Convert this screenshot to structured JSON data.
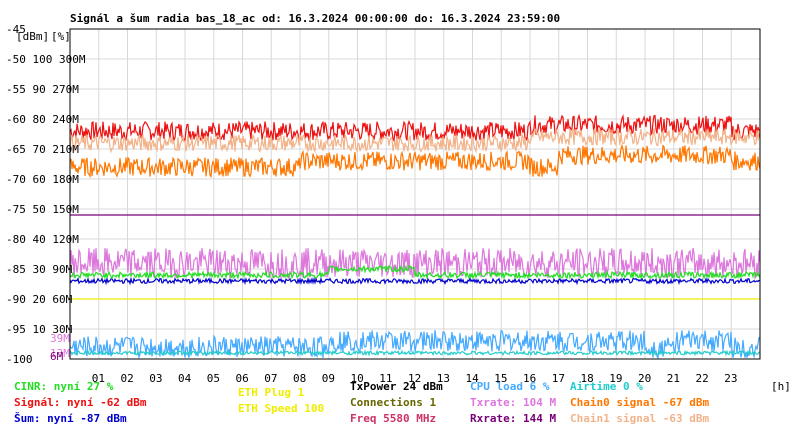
{
  "title": "Signál a šum radia bas_18_ac od: 16.3.2024 00:00:00 do: 16.3.2024 23:59:00",
  "unit_labels": {
    "dbm": "[dBm]",
    "pct": "[%]",
    "hour": "[h]"
  },
  "colors": {
    "background": "#ffffff",
    "frame": "#000000",
    "grid": "#d8d8d8",
    "signal": "#ee1111",
    "chain0": "#ff7700",
    "chain1": "#f3b38a",
    "noise": "#0000cc",
    "rxrate": "#770077",
    "txrate": "#dd77dd",
    "cinr": "#22dd22",
    "eth_speed": "#eeee00",
    "cpu": "#44aaff",
    "airtime": "#22cccc",
    "connections": "#666600"
  },
  "chart_data": {
    "type": "line",
    "title": "Signál a šum radia bas_18_ac od: 16.3.2024 00:00:00 do: 16.3.2024 23:59:00",
    "x_unit": "[h]",
    "xlim": [
      0,
      24
    ],
    "x_ticks": [
      "01",
      "02",
      "03",
      "04",
      "05",
      "06",
      "07",
      "08",
      "09",
      "10",
      "11",
      "12",
      "13",
      "14",
      "15",
      "16",
      "17",
      "18",
      "19",
      "20",
      "21",
      "22",
      "23"
    ],
    "ylim": [
      -100,
      -45
    ],
    "y_ticks": [
      {
        "dbm": "-45",
        "pct": "",
        "rate": ""
      },
      {
        "dbm": "-50",
        "pct": "100",
        "rate": "300M"
      },
      {
        "dbm": "-55",
        "pct": "90",
        "rate": "270M"
      },
      {
        "dbm": "-60",
        "pct": "80",
        "rate": "240M"
      },
      {
        "dbm": "-65",
        "pct": "70",
        "rate": "210M"
      },
      {
        "dbm": "-70",
        "pct": "60",
        "rate": "180M"
      },
      {
        "dbm": "-75",
        "pct": "50",
        "rate": "150M"
      },
      {
        "dbm": "-80",
        "pct": "40",
        "rate": "120M"
      },
      {
        "dbm": "-85",
        "pct": "30",
        "rate": "90M"
      },
      {
        "dbm": "-90",
        "pct": "20",
        "rate": "60M"
      },
      {
        "dbm": "-95",
        "pct": "10",
        "rate": "30M"
      },
      {
        "dbm": "-100",
        "pct": "",
        "rate": ""
      }
    ],
    "markers": [
      {
        "text": "39M",
        "y": -96.5,
        "color": "#dd77dd"
      },
      {
        "text": "13M",
        "y": -99,
        "color": "#dd77dd"
      },
      {
        "text": "6M",
        "y": -99.5,
        "color": "#770077"
      }
    ],
    "series": [
      {
        "name": "Signál",
        "color": "#ee1111",
        "values": [
          -62,
          -62,
          -62,
          -62,
          -62,
          -62,
          -62,
          -62,
          -62,
          -62,
          -62,
          -62,
          -62,
          -62,
          -62,
          -62,
          -61,
          -61,
          -61,
          -61,
          -61,
          -61,
          -61,
          -62
        ]
      },
      {
        "name": "Chain0 signal",
        "color": "#ff7700",
        "values": [
          -68,
          -68,
          -68,
          -68,
          -68,
          -68,
          -68,
          -68,
          -67,
          -67,
          -67,
          -67,
          -67,
          -67,
          -67,
          -67,
          -68,
          -66,
          -66,
          -66,
          -66,
          -66,
          -66,
          -67
        ]
      },
      {
        "name": "Chain1 signal",
        "color": "#f3b38a",
        "values": [
          -64,
          -64,
          -64,
          -64,
          -64,
          -64,
          -64,
          -64,
          -64,
          -64,
          -64,
          -64,
          -64,
          -64,
          -64,
          -64,
          -63,
          -63,
          -63,
          -63,
          -63,
          -63,
          -63,
          -63
        ]
      },
      {
        "name": "Šum",
        "color": "#0000cc",
        "values": [
          -87,
          -87,
          -87,
          -87,
          -87,
          -87,
          -87,
          -87,
          -87,
          -87,
          -87,
          -87,
          -87,
          -87,
          -87,
          -87,
          -87,
          -87,
          -87,
          -87,
          -87,
          -87,
          -87,
          -87
        ]
      },
      {
        "name": "Rxrate",
        "color": "#770077",
        "values": [
          -76,
          -76,
          -76,
          -76,
          -76,
          -76,
          -76,
          -76,
          -76,
          -76,
          -76,
          -76,
          -76,
          -76,
          -76,
          -76,
          -76,
          -76,
          -76,
          -76,
          -76,
          -76,
          -76,
          -76
        ]
      },
      {
        "name": "Txrate",
        "color": "#dd77dd",
        "values": [
          -84,
          -84,
          -84,
          -84,
          -84,
          -84,
          -84,
          -84,
          -84,
          -84,
          -84,
          -84,
          -84,
          -84,
          -84,
          -84,
          -84,
          -84,
          -84,
          -84,
          -84,
          -84,
          -84,
          -84
        ]
      },
      {
        "name": "CINR",
        "color": "#22dd22",
        "values": [
          -86,
          -86,
          -86,
          -86,
          -86,
          -86,
          -86,
          -86,
          -86,
          -85,
          -85,
          -85,
          -86,
          -86,
          -86,
          -86,
          -86,
          -86,
          -86,
          -86,
          -86,
          -86,
          -86,
          -86
        ]
      },
      {
        "name": "ETH Speed",
        "color": "#eeee00",
        "values": [
          -90,
          -90,
          -90,
          -90,
          -90,
          -90,
          -90,
          -90,
          -90,
          -90,
          -90,
          -90,
          -90,
          -90,
          -90,
          -90,
          -90,
          -90,
          -90,
          -90,
          -90,
          -90,
          -90,
          -90
        ]
      },
      {
        "name": "CPU load",
        "color": "#44aaff",
        "values": [
          -98,
          -98,
          -98,
          -98,
          -98,
          -98,
          -98,
          -98,
          -98,
          -97,
          -97,
          -97,
          -97,
          -97,
          -97,
          -97,
          -97,
          -97,
          -97,
          -97,
          -98,
          -97,
          -97,
          -98
        ]
      },
      {
        "name": "Airtime",
        "color": "#22cccc",
        "values": [
          -99,
          -99,
          -99,
          -99,
          -99,
          -99,
          -99,
          -99,
          -99,
          -99,
          -99,
          -99,
          -99,
          -99,
          -99,
          -99,
          -99,
          -99,
          -99,
          -99,
          -99,
          -99,
          -99,
          -99
        ]
      }
    ]
  },
  "legend": {
    "col1": [
      {
        "text": "CINR: nyní 27 %",
        "color": "#22dd22"
      },
      {
        "text": "Signál: nyní -62 dBm",
        "color": "#ee1111"
      },
      {
        "text": "Šum: nyní -87 dBm",
        "color": "#0000cc"
      }
    ],
    "col2": [
      {
        "text": "ETH Plug 1",
        "color": "#eeee00"
      },
      {
        "text": "ETH Speed 100",
        "color": "#eeee00"
      }
    ],
    "col3": [
      {
        "text": "TxPower 24 dBm",
        "color": "#000000"
      },
      {
        "text": "Connections 1",
        "color": "#666600"
      },
      {
        "text": "Freq 5580 MHz",
        "color": "#cc3366"
      }
    ],
    "col4": [
      {
        "text": "CPU load 6 %",
        "color": "#44aaff"
      },
      {
        "text": "Txrate: 104 M",
        "color": "#dd77dd"
      },
      {
        "text": "Rxrate: 144 M",
        "color": "#770077"
      }
    ],
    "col5": [
      {
        "text": "Airtime 0 %",
        "color": "#22cccc"
      },
      {
        "text": "Chain0 signal -67 dBm",
        "color": "#ff7700"
      },
      {
        "text": "Chain1 signal -63 dBm",
        "color": "#f3b38a"
      }
    ]
  }
}
